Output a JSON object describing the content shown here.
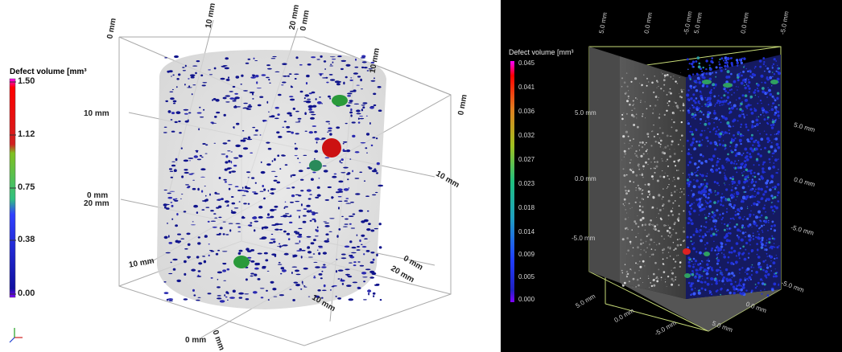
{
  "left": {
    "colorbar": {
      "title": "Defect volume [mm³",
      "ticks": [
        "1.50",
        "1.12",
        "0.75",
        "0.38",
        "0.00"
      ],
      "colors": [
        "#ff00ff",
        "#ff0000",
        "#e03030",
        "#80c020",
        "#20c080",
        "#2020ff",
        "#0000a0",
        "#8000ff"
      ]
    },
    "axis_labels": [
      {
        "text": "0 mm",
        "rot": -80
      },
      {
        "text": "10 mm",
        "rot": -80
      },
      {
        "text": "20 mm",
        "rot": -80
      },
      {
        "text": "0 mm",
        "rot": -80
      },
      {
        "text": "10 mm",
        "rot": -80
      },
      {
        "text": "0 mm",
        "rot": -80
      },
      {
        "text": "10 mm",
        "rot": 0
      },
      {
        "text": "0 mm",
        "rot": 0
      },
      {
        "text": "20 mm",
        "rot": 0
      },
      {
        "text": "10 mm",
        "rot": 30
      },
      {
        "text": "10 mm",
        "rot": -10
      },
      {
        "text": "0 mm",
        "rot": 30
      },
      {
        "text": "20 mm",
        "rot": 30
      },
      {
        "text": "10 mm",
        "rot": 30
      },
      {
        "text": "0 mm",
        "rot": 0
      },
      {
        "text": "0 mm",
        "rot": 70
      }
    ]
  },
  "right": {
    "colorbar": {
      "title": "Defect volume [mm³",
      "ticks": [
        "0.045",
        "0.041",
        "0.036",
        "0.032",
        "0.027",
        "0.023",
        "0.018",
        "0.014",
        "0.009",
        "0.005",
        "0.000"
      ],
      "colors": [
        "#ff00ff",
        "#ff0000",
        "#ff8000",
        "#c0c000",
        "#40c040",
        "#20c080",
        "#20a0c0",
        "#2060ff",
        "#2020ff",
        "#8000ff"
      ]
    },
    "axis_labels": [
      {
        "text": "5.0 mm",
        "rot": -80
      },
      {
        "text": "0.0 mm",
        "rot": -80
      },
      {
        "text": "-5.0 mm",
        "rot": -80
      },
      {
        "text": "5.0 mm",
        "rot": -80
      },
      {
        "text": "0.0 mm",
        "rot": -80
      },
      {
        "text": "-5.0 mm",
        "rot": -80
      },
      {
        "text": "5.0 mm",
        "rot": 0
      },
      {
        "text": "0.0 mm",
        "rot": 0
      },
      {
        "text": "-5.0 mm",
        "rot": 0
      },
      {
        "text": "5.0 mm",
        "rot": 15
      },
      {
        "text": "0.0 mm",
        "rot": 15
      },
      {
        "text": "-5.0 mm",
        "rot": 15
      },
      {
        "text": "5.0 mm",
        "rot": -30
      },
      {
        "text": "0.0 mm",
        "rot": -30
      },
      {
        "text": "-5.0 mm",
        "rot": -30
      },
      {
        "text": "-5.0 mm",
        "rot": 20
      },
      {
        "text": "0.0 mm",
        "rot": 20
      },
      {
        "text": "5.0 mm",
        "rot": 20
      }
    ]
  }
}
